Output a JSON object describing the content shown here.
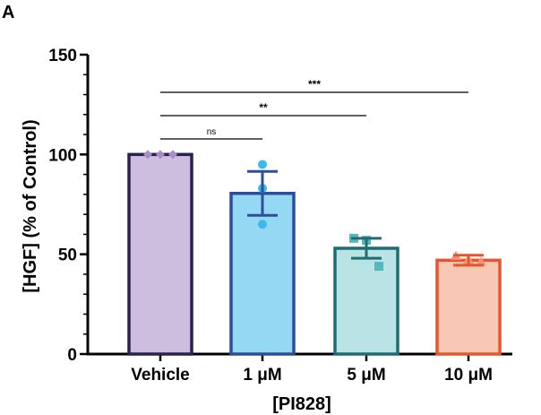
{
  "panel_label": "A",
  "chart_data": {
    "type": "bar",
    "categories": [
      "Vehicle",
      "1 μM",
      "5 μM",
      "10 μM"
    ],
    "xlabel": "[PI828]",
    "ylabel": "[HGF] (% of Control)",
    "ylim": [
      0,
      150
    ],
    "yticks": [
      0,
      50,
      100,
      150
    ],
    "grid": false,
    "series": [
      {
        "values": [
          100,
          80.5,
          53,
          47
        ],
        "sem": [
          0,
          11,
          5,
          2.5
        ],
        "points": [
          [
            100,
            100,
            100
          ],
          [
            95,
            83,
            65
          ],
          [
            58,
            57,
            44
          ],
          [
            49,
            47,
            46
          ]
        ],
        "markers": [
          "diamond",
          "circle",
          "square",
          "triangle"
        ],
        "fill_colors": [
          "#cdbedf",
          "#95d8f3",
          "#b9e3e4",
          "#f9c8b5"
        ],
        "edge_colors": [
          "#2a2150",
          "#2d4e9a",
          "#1f6d74",
          "#e4572e"
        ],
        "point_colors": [
          "#a88cc9",
          "#3cb8ea",
          "#57b7bf",
          "#f0957a"
        ]
      }
    ],
    "significance": [
      {
        "from": "Vehicle",
        "to": "1 μM",
        "label": "ns"
      },
      {
        "from": "Vehicle",
        "to": "5 μM",
        "label": "**"
      },
      {
        "from": "Vehicle",
        "to": "10 μM",
        "label": "***"
      }
    ]
  }
}
